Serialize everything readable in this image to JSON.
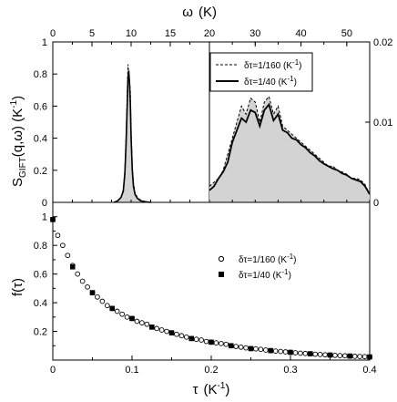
{
  "chart_data": [
    {
      "panel": "top-left",
      "type": "line",
      "xlabel_top": "ω",
      "xlabel_top_unit": "(K)",
      "ylabel_main": "S",
      "ylabel_sub": "GIFT",
      "ylabel_rest": "(q,ω)  (K",
      "ylabel_exp": "-1",
      "ylabel_close": ")",
      "xlim": [
        0,
        20
      ],
      "ylim": [
        0,
        1
      ],
      "x_ticks": [
        "0",
        "5",
        "10",
        "15",
        "20"
      ],
      "y_ticks": [
        "0",
        "0.2",
        "0.4",
        "0.6",
        "0.8",
        "1"
      ],
      "peak_center": 9.7,
      "series": [
        {
          "legend": "δτ=1/160  (K",
          "style": "dashed-filled",
          "x": [
            7.8,
            8.3,
            8.7,
            9.0,
            9.2,
            9.35,
            9.5,
            9.6,
            9.7,
            9.8,
            9.9,
            10.0,
            10.15,
            10.3,
            10.5,
            10.8,
            11.2,
            11.8,
            12.5
          ],
          "y": [
            0,
            0.01,
            0.03,
            0.08,
            0.2,
            0.4,
            0.68,
            0.86,
            0.8,
            0.76,
            0.7,
            0.45,
            0.23,
            0.12,
            0.06,
            0.03,
            0.015,
            0.005,
            0
          ]
        },
        {
          "legend": "δτ=1/40  (K",
          "style": "solid",
          "x": [
            7.8,
            8.3,
            8.7,
            9.0,
            9.2,
            9.35,
            9.5,
            9.6,
            9.7,
            9.8,
            9.9,
            10.0,
            10.15,
            10.3,
            10.5,
            10.8,
            11.2,
            11.8,
            12.5
          ],
          "y": [
            0,
            0.01,
            0.03,
            0.07,
            0.18,
            0.36,
            0.6,
            0.78,
            0.82,
            0.74,
            0.62,
            0.4,
            0.2,
            0.1,
            0.05,
            0.025,
            0.01,
            0.004,
            0
          ]
        }
      ]
    },
    {
      "panel": "top-right",
      "type": "area",
      "xlim": [
        20,
        55
      ],
      "ylim": [
        0,
        0.02
      ],
      "x_ticks": [
        "20",
        "30",
        "40",
        "50"
      ],
      "y_ticks_right": [
        "0",
        "0.01",
        "0.02"
      ],
      "series": [
        {
          "legend": "δτ=1/160  (K",
          "style": "dashed-filled",
          "x": [
            20,
            21,
            22,
            23,
            24,
            25,
            26,
            27,
            28,
            29,
            30,
            31,
            32,
            33,
            34,
            35,
            36,
            37,
            38,
            39,
            40,
            41,
            42,
            43,
            44,
            45,
            46,
            47,
            48,
            49,
            50,
            51,
            52,
            53,
            54,
            55
          ],
          "y": [
            0.002,
            0.0025,
            0.003,
            0.004,
            0.006,
            0.008,
            0.01,
            0.012,
            0.011,
            0.013,
            0.0125,
            0.01,
            0.0125,
            0.0132,
            0.011,
            0.012,
            0.0095,
            0.009,
            0.0085,
            0.008,
            0.0075,
            0.007,
            0.0065,
            0.006,
            0.0055,
            0.005,
            0.0045,
            0.0045,
            0.004,
            0.0038,
            0.0035,
            0.003,
            0.003,
            0.0028,
            0.0022,
            0.001
          ]
        },
        {
          "legend": "δτ=1/40  (K",
          "style": "solid",
          "x": [
            20,
            21,
            22,
            23,
            24,
            25,
            26,
            27,
            28,
            29,
            30,
            31,
            32,
            33,
            34,
            35,
            36,
            37,
            38,
            39,
            40,
            41,
            42,
            43,
            44,
            45,
            46,
            47,
            48,
            49,
            50,
            51,
            52,
            53,
            54,
            55
          ],
          "y": [
            0.0015,
            0.002,
            0.003,
            0.0038,
            0.005,
            0.0075,
            0.009,
            0.0105,
            0.01,
            0.0115,
            0.0112,
            0.0095,
            0.0115,
            0.0122,
            0.0102,
            0.011,
            0.009,
            0.0087,
            0.008,
            0.0078,
            0.0072,
            0.0068,
            0.0062,
            0.0058,
            0.0052,
            0.0048,
            0.0045,
            0.0042,
            0.004,
            0.0036,
            0.0034,
            0.003,
            0.0028,
            0.0026,
            0.002,
            0.001
          ]
        }
      ],
      "legend_position": "top-right"
    },
    {
      "panel": "bottom",
      "type": "scatter",
      "xlabel": "τ",
      "xlabel_unit": "(K",
      "xlabel_exp": "-1",
      "xlabel_close": ")",
      "ylabel": "f(τ)",
      "xlim": [
        0,
        0.4
      ],
      "ylim": [
        0,
        1.1
      ],
      "x_ticks": [
        "0",
        "0.1",
        "0.2",
        "0.3",
        "0.4"
      ],
      "y_ticks": [
        "0.2",
        "0.4",
        "0.6",
        "0.8",
        "1"
      ],
      "series": [
        {
          "legend": "δτ=1/160  (K",
          "marker": "open-circle",
          "x": [
            0,
            0.00625,
            0.0125,
            0.01875,
            0.025,
            0.03125,
            0.0375,
            0.04375,
            0.05,
            0.05625,
            0.0625,
            0.06875,
            0.075,
            0.08125,
            0.0875,
            0.09375,
            0.1,
            0.10625,
            0.1125,
            0.11875,
            0.125,
            0.13125,
            0.1375,
            0.14375,
            0.15,
            0.15625,
            0.1625,
            0.16875,
            0.175,
            0.18125,
            0.1875,
            0.19375,
            0.2,
            0.20625,
            0.2125,
            0.21875,
            0.225,
            0.23125,
            0.2375,
            0.24375,
            0.25,
            0.25625,
            0.2625,
            0.26875,
            0.275,
            0.28125,
            0.2875,
            0.29375,
            0.3,
            0.30625,
            0.3125,
            0.31875,
            0.325,
            0.33125,
            0.3375,
            0.34375,
            0.35,
            0.35625,
            0.3625,
            0.36875,
            0.375,
            0.38125,
            0.3875,
            0.39375,
            0.4
          ],
          "y": [
            0.98,
            0.87,
            0.8,
            0.73,
            0.66,
            0.6,
            0.55,
            0.51,
            0.47,
            0.44,
            0.41,
            0.38,
            0.36,
            0.34,
            0.32,
            0.3,
            0.29,
            0.27,
            0.26,
            0.25,
            0.23,
            0.22,
            0.21,
            0.2,
            0.19,
            0.18,
            0.17,
            0.16,
            0.15,
            0.145,
            0.14,
            0.13,
            0.125,
            0.12,
            0.115,
            0.11,
            0.1,
            0.095,
            0.09,
            0.085,
            0.08,
            0.078,
            0.075,
            0.07,
            0.066,
            0.063,
            0.06,
            0.057,
            0.054,
            0.051,
            0.048,
            0.046,
            0.044,
            0.041,
            0.039,
            0.037,
            0.035,
            0.033,
            0.031,
            0.03,
            0.028,
            0.026,
            0.025,
            0.024,
            0.022
          ]
        },
        {
          "legend": "δτ=1/40  (K",
          "marker": "filled-square",
          "x": [
            0,
            0.025,
            0.05,
            0.075,
            0.1,
            0.125,
            0.15,
            0.175,
            0.2,
            0.225,
            0.25,
            0.275,
            0.3,
            0.325,
            0.35,
            0.375,
            0.4
          ],
          "y": [
            0.98,
            0.65,
            0.47,
            0.36,
            0.29,
            0.23,
            0.19,
            0.15,
            0.125,
            0.1,
            0.08,
            0.066,
            0.054,
            0.044,
            0.035,
            0.028,
            0.022
          ]
        }
      ],
      "legend_position": "top-right",
      "legend_unit_exp": "-1",
      "legend_unit_close": ")"
    }
  ]
}
